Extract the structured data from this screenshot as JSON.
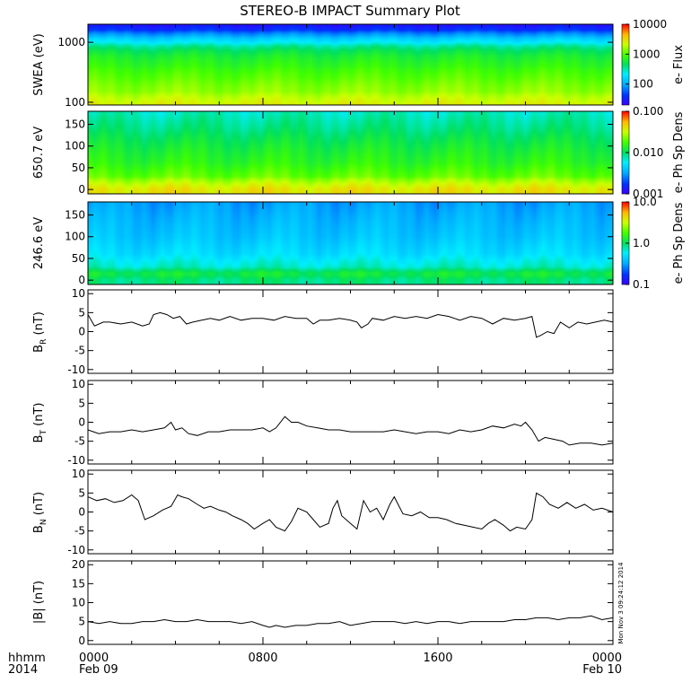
{
  "title": "STEREO-B IMPACT Summary Plot",
  "time_axis": {
    "row1_label": "hhmm",
    "row2_label": "2014",
    "ticks": [
      {
        "hour": 0,
        "hhmm": "0000",
        "date": "Feb 09"
      },
      {
        "hour": 8,
        "hhmm": "0800",
        "date": ""
      },
      {
        "hour": 16,
        "hhmm": "1600",
        "date": ""
      },
      {
        "hour": 24,
        "hhmm": "0000",
        "date": "Feb 10"
      }
    ],
    "range_hours": [
      0,
      24
    ]
  },
  "stamp": "Mon Nov 3 09:24:12 2014",
  "colors": {
    "line": "#000000",
    "background": "#ffffff"
  },
  "chart_data": [
    {
      "type": "heatmap",
      "id": "swea",
      "ylabel": "SWEA (eV)",
      "yscale": "log",
      "ylim": [
        90,
        2000
      ],
      "yticks": [
        {
          "v": 100,
          "label": "100"
        },
        {
          "v": 1000,
          "label": "1000"
        }
      ],
      "colorbar": {
        "label": "e- Flux",
        "scale": "log",
        "range": [
          20,
          10000
        ],
        "ticks": [
          {
            "v": 100,
            "label": "100"
          },
          {
            "v": 1000,
            "label": "1000"
          },
          {
            "v": 10000,
            "label": "10000"
          }
        ]
      },
      "profile_y": [
        90,
        100,
        150,
        250,
        400,
        600,
        800,
        1000,
        1300,
        1600,
        2000
      ],
      "profile_value": [
        2600,
        2300,
        1500,
        1100,
        800,
        600,
        400,
        200,
        90,
        40,
        25
      ]
    },
    {
      "type": "heatmap",
      "id": "pad650",
      "ylabel": "650.7 eV",
      "yscale": "linear",
      "ylim": [
        -10,
        180
      ],
      "yticks": [
        {
          "v": 0,
          "label": "0"
        },
        {
          "v": 50,
          "label": "50"
        },
        {
          "v": 100,
          "label": "100"
        },
        {
          "v": 150,
          "label": "150"
        }
      ],
      "colorbar": {
        "label": "e- Ph Sp Dens",
        "scale": "log",
        "range": [
          0.001,
          0.1
        ],
        "ticks": [
          {
            "v": 0.001,
            "label": "0.001"
          },
          {
            "v": 0.01,
            "label": "0.010"
          },
          {
            "v": 0.1,
            "label": "0.100"
          }
        ]
      },
      "profile_y": [
        0,
        15,
        30,
        60,
        100,
        140,
        180
      ],
      "profile_value": [
        0.04,
        0.03,
        0.02,
        0.015,
        0.012,
        0.009,
        0.007
      ]
    },
    {
      "type": "heatmap",
      "id": "pad246",
      "ylabel": "246.6 eV",
      "yscale": "linear",
      "ylim": [
        -10,
        180
      ],
      "yticks": [
        {
          "v": 0,
          "label": "0"
        },
        {
          "v": 50,
          "label": "50"
        },
        {
          "v": 100,
          "label": "100"
        },
        {
          "v": 150,
          "label": "150"
        }
      ],
      "colorbar": {
        "label": "e- Ph Sp Dens",
        "scale": "log",
        "range": [
          0.1,
          10
        ],
        "ticks": [
          {
            "v": 0.1,
            "label": "0.1"
          },
          {
            "v": 1,
            "label": "1.0"
          },
          {
            "v": 10,
            "label": "10.0"
          }
        ]
      },
      "profile_y": [
        0,
        15,
        30,
        60,
        100,
        140,
        180
      ],
      "profile_value": [
        0.9,
        1.2,
        0.7,
        0.5,
        0.4,
        0.35,
        0.3
      ]
    },
    {
      "type": "line",
      "id": "br",
      "ylabel": "B",
      "ylabel_sub": "R",
      "ylabel_unit": " (nT)",
      "ylim": [
        -11,
        11
      ],
      "yticks": [
        {
          "v": -10,
          "label": "-10"
        },
        {
          "v": -5,
          "label": "-5"
        },
        {
          "v": 0,
          "label": "0"
        },
        {
          "v": 5,
          "label": "5"
        },
        {
          "v": 10,
          "label": "10"
        }
      ],
      "x": [
        0,
        0.3,
        0.7,
        1,
        1.5,
        2,
        2.5,
        2.8,
        3,
        3.3,
        3.6,
        3.9,
        4.2,
        4.5,
        4.8,
        5.2,
        5.6,
        6,
        6.5,
        7,
        7.5,
        8,
        8.5,
        9,
        9.5,
        10,
        10.3,
        10.6,
        11,
        11.5,
        12,
        12.3,
        12.5,
        12.8,
        13,
        13.5,
        14,
        14.5,
        15,
        15.5,
        16,
        16.5,
        17,
        17.5,
        18,
        18.5,
        19,
        19.5,
        20,
        20.3,
        20.5,
        20.7,
        21,
        21.3,
        21.6,
        22,
        22.4,
        22.8,
        23.2,
        23.6,
        24
      ],
      "y": [
        4.5,
        1.5,
        2.5,
        2.5,
        2,
        2.5,
        1.5,
        2,
        4.5,
        5,
        4.5,
        3.5,
        4,
        2,
        2.5,
        3,
        3.5,
        3,
        4,
        3,
        3.5,
        3.5,
        3,
        4,
        3.5,
        3.5,
        2,
        3,
        3,
        3.5,
        3,
        2.5,
        1,
        2,
        3.5,
        3,
        4,
        3.5,
        4,
        3.5,
        4.5,
        4,
        3,
        4,
        3.5,
        2,
        3.5,
        3,
        3.5,
        4,
        -1.5,
        -1,
        0,
        -0.5,
        2.5,
        1,
        2.5,
        2,
        2.5,
        3,
        2.5
      ]
    },
    {
      "type": "line",
      "id": "bt",
      "ylabel": "B",
      "ylabel_sub": "T",
      "ylabel_unit": " (nT)",
      "ylim": [
        -11,
        11
      ],
      "yticks": [
        {
          "v": -10,
          "label": "-10"
        },
        {
          "v": -5,
          "label": "-5"
        },
        {
          "v": 0,
          "label": "0"
        },
        {
          "v": 5,
          "label": "5"
        },
        {
          "v": 10,
          "label": "10"
        }
      ],
      "x": [
        0,
        0.5,
        1,
        1.5,
        2,
        2.5,
        3,
        3.5,
        3.8,
        4,
        4.3,
        4.6,
        5,
        5.5,
        6,
        6.5,
        7,
        7.5,
        8,
        8.3,
        8.6,
        9,
        9.3,
        9.6,
        10,
        10.5,
        11,
        11.5,
        12,
        12.5,
        13,
        13.5,
        14,
        14.5,
        15,
        15.5,
        16,
        16.5,
        17,
        17.5,
        18,
        18.5,
        19,
        19.5,
        19.8,
        20,
        20.3,
        20.6,
        20.9,
        21.3,
        21.7,
        22,
        22.5,
        23,
        23.5,
        24
      ],
      "y": [
        -2,
        -3,
        -2.5,
        -2.5,
        -2,
        -2.5,
        -2,
        -1.5,
        0,
        -2,
        -1.5,
        -3,
        -3.5,
        -2.5,
        -2.5,
        -2,
        -2,
        -2,
        -1.5,
        -2.5,
        -1.5,
        1.5,
        0,
        0,
        -1,
        -1.5,
        -2,
        -2,
        -2.5,
        -2.5,
        -2.5,
        -2.5,
        -2,
        -2.5,
        -3,
        -2.5,
        -2.5,
        -3,
        -2,
        -2.5,
        -2,
        -1,
        -1.5,
        -0.5,
        -1,
        0,
        -2,
        -5,
        -4,
        -4.5,
        -5,
        -6,
        -5.5,
        -5.5,
        -6,
        -5.5
      ]
    },
    {
      "type": "line",
      "id": "bn",
      "ylabel": "B",
      "ylabel_sub": "N",
      "ylabel_unit": " (nT)",
      "ylim": [
        -11,
        11
      ],
      "yticks": [
        {
          "v": -10,
          "label": "-10"
        },
        {
          "v": -5,
          "label": "-5"
        },
        {
          "v": 0,
          "label": "0"
        },
        {
          "v": 5,
          "label": "5"
        },
        {
          "v": 10,
          "label": "10"
        }
      ],
      "x": [
        0,
        0.4,
        0.8,
        1.2,
        1.6,
        2,
        2.3,
        2.6,
        3,
        3.4,
        3.8,
        4.1,
        4.3,
        4.6,
        5,
        5.3,
        5.6,
        6,
        6.3,
        6.6,
        7,
        7.3,
        7.6,
        8,
        8.3,
        8.6,
        9,
        9.3,
        9.6,
        10,
        10.3,
        10.6,
        11,
        11.2,
        11.4,
        11.6,
        12,
        12.3,
        12.6,
        12.9,
        13.2,
        13.5,
        13.8,
        14,
        14.4,
        14.8,
        15.2,
        15.6,
        16,
        16.4,
        16.8,
        17.2,
        17.6,
        18,
        18.3,
        18.6,
        19,
        19.3,
        19.6,
        20,
        20.3,
        20.5,
        20.8,
        21.1,
        21.5,
        21.9,
        22.3,
        22.7,
        23.1,
        23.5,
        24
      ],
      "y": [
        4,
        3,
        3.5,
        2.5,
        3,
        4.5,
        3,
        -2,
        -1,
        0.5,
        1.5,
        4.5,
        4,
        3.5,
        2,
        1,
        1.5,
        0.5,
        0,
        -1,
        -2,
        -3,
        -4.5,
        -3,
        -2,
        -4,
        -5,
        -2.5,
        1,
        0,
        -2,
        -4,
        -3,
        1,
        3,
        -1,
        -3,
        -4.5,
        3,
        0,
        1,
        -2,
        2,
        4,
        -0.5,
        -1,
        0,
        -1.5,
        -1.5,
        -2,
        -3,
        -3.5,
        -4,
        -4.5,
        -3,
        -2,
        -3.5,
        -5,
        -4,
        -4.5,
        -2,
        5,
        4,
        2,
        1,
        2.5,
        1,
        2,
        0.5,
        1,
        0
      ]
    },
    {
      "type": "line",
      "id": "bmag",
      "ylabel": "|B| (nT)",
      "ylim": [
        -1,
        21
      ],
      "yticks": [
        {
          "v": 0,
          "label": "0"
        },
        {
          "v": 5,
          "label": "5"
        },
        {
          "v": 10,
          "label": "10"
        },
        {
          "v": 15,
          "label": "15"
        },
        {
          "v": 20,
          "label": "20"
        }
      ],
      "x": [
        0,
        0.5,
        1,
        1.5,
        2,
        2.5,
        3,
        3.5,
        4,
        4.5,
        5,
        5.5,
        6,
        6.5,
        7,
        7.5,
        8,
        8.3,
        8.6,
        9,
        9.5,
        10,
        10.5,
        11,
        11.5,
        12,
        12.5,
        13,
        13.5,
        14,
        14.5,
        15,
        15.5,
        16,
        16.5,
        17,
        17.5,
        18,
        18.5,
        19,
        19.5,
        20,
        20.5,
        21,
        21.5,
        22,
        22.5,
        23,
        23.5,
        24
      ],
      "y": [
        5,
        4.5,
        5,
        4.5,
        4.5,
        5,
        5,
        5.5,
        5,
        5,
        5.5,
        5,
        5,
        5,
        4.5,
        5,
        4,
        3.5,
        4,
        3.5,
        4,
        4,
        4.5,
        4.5,
        5,
        4,
        4.5,
        5,
        5,
        5,
        4.5,
        5,
        4.5,
        5,
        5,
        4.5,
        5,
        5,
        5,
        5,
        5.5,
        5.5,
        6,
        6,
        5.5,
        6,
        6,
        6.5,
        5.5,
        6
      ]
    }
  ]
}
